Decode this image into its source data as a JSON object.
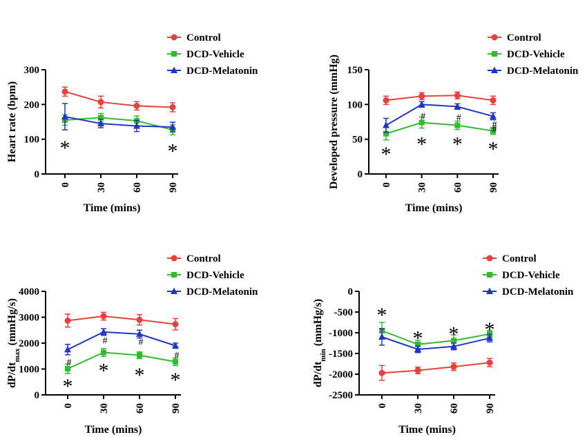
{
  "chart_data": [
    {
      "id": "hr",
      "type": "line",
      "title": "",
      "xlabel": "Time (mins)",
      "ylabel": "Heart rate (bpm)",
      "ylabel_sub": "",
      "ylabel_after": "",
      "x": [
        0,
        30,
        60,
        90
      ],
      "x_tick_labels": [
        "0",
        "30",
        "60",
        "90"
      ],
      "ylim": [
        0,
        300
      ],
      "y_ticks": [
        0,
        100,
        200,
        300
      ],
      "y_tick_labels": [
        "0",
        "100",
        "200",
        "300"
      ],
      "legend_position": "top-right",
      "series": [
        {
          "name": "Control",
          "color": "#e8403a",
          "marker": "circle",
          "values": [
            237,
            207,
            196,
            192
          ],
          "errors": [
            13,
            17,
            12,
            13
          ]
        },
        {
          "name": "DCD-Vehicle",
          "color": "#2ebd2b",
          "marker": "square",
          "values": [
            155,
            162,
            153,
            127
          ],
          "errors": [
            15,
            12,
            14,
            14
          ]
        },
        {
          "name": "DCD-Melatonin",
          "color": "#1f35c8",
          "marker": "triangle",
          "values": [
            165,
            145,
            138,
            135
          ],
          "errors": [
            38,
            12,
            16,
            14
          ]
        }
      ],
      "annotations": [
        {
          "text": "*",
          "x": 0,
          "y": 83,
          "kind": "star"
        },
        {
          "text": "*",
          "x": 90,
          "y": 75,
          "kind": "star"
        }
      ]
    },
    {
      "id": "dp",
      "type": "line",
      "title": "",
      "xlabel": "Time (mins)",
      "ylabel": "Developed pressure (mmHg)",
      "ylabel_sub": "",
      "ylabel_after": "",
      "x": [
        0,
        30,
        60,
        90
      ],
      "x_tick_labels": [
        "0",
        "30",
        "60",
        "90"
      ],
      "ylim": [
        0,
        150
      ],
      "y_ticks": [
        0,
        50,
        100,
        150
      ],
      "y_tick_labels": [
        "0",
        "50",
        "100",
        "150"
      ],
      "legend_position": "top-right",
      "series": [
        {
          "name": "Control",
          "color": "#e8403a",
          "marker": "circle",
          "values": [
            106,
            112,
            113,
            106
          ],
          "errors": [
            6,
            5,
            5,
            6
          ]
        },
        {
          "name": "DCD-Vehicle",
          "color": "#2ebd2b",
          "marker": "square",
          "values": [
            58,
            74,
            70,
            62
          ],
          "errors": [
            9,
            8,
            6,
            5
          ]
        },
        {
          "name": "DCD-Melatonin",
          "color": "#1f35c8",
          "marker": "triangle",
          "values": [
            70,
            100,
            97,
            83
          ],
          "errors": [
            10,
            4,
            4,
            5
          ]
        }
      ],
      "annotations": [
        {
          "text": "*",
          "x": 0,
          "y": 33,
          "kind": "star"
        },
        {
          "text": "*",
          "x": 30,
          "y": 47,
          "kind": "star"
        },
        {
          "text": "*",
          "x": 60,
          "y": 47,
          "kind": "star"
        },
        {
          "text": "*",
          "x": 90,
          "y": 40,
          "kind": "star"
        },
        {
          "text": "#",
          "x": 30,
          "y": 84,
          "kind": "hash"
        },
        {
          "text": "#",
          "x": 60,
          "y": 82,
          "kind": "hash"
        },
        {
          "text": "#",
          "x": 90,
          "y": 72,
          "kind": "hash"
        },
        {
          "text": "#",
          "x": 90,
          "y": 65,
          "kind": "hash"
        }
      ]
    },
    {
      "id": "dpmax",
      "type": "line",
      "title": "",
      "xlabel": "Time (mins)",
      "ylabel": "dP/dt",
      "ylabel_sub": "max",
      "ylabel_after": " (mmHg/s)",
      "x": [
        0,
        30,
        60,
        90
      ],
      "x_tick_labels": [
        "0",
        "30",
        "60",
        "90"
      ],
      "ylim": [
        0,
        4000
      ],
      "y_ticks": [
        0,
        1000,
        2000,
        3000,
        4000
      ],
      "y_tick_labels": [
        "0",
        "1000",
        "2000",
        "3000",
        "4000"
      ],
      "legend_position": "top-right",
      "series": [
        {
          "name": "Control",
          "color": "#e8403a",
          "marker": "circle",
          "values": [
            2870,
            3040,
            2900,
            2730
          ],
          "errors": [
            250,
            150,
            200,
            220
          ]
        },
        {
          "name": "DCD-Vehicle",
          "color": "#2ebd2b",
          "marker": "square",
          "values": [
            1010,
            1640,
            1530,
            1280
          ],
          "errors": [
            180,
            150,
            130,
            150
          ]
        },
        {
          "name": "DCD-Melatonin",
          "color": "#1f35c8",
          "marker": "triangle",
          "values": [
            1750,
            2430,
            2350,
            1900
          ],
          "errors": [
            200,
            130,
            150,
            100
          ]
        }
      ],
      "annotations": [
        {
          "text": "*",
          "x": 0,
          "y": 460,
          "kind": "star"
        },
        {
          "text": "*",
          "x": 30,
          "y": 1050,
          "kind": "star"
        },
        {
          "text": "*",
          "x": 60,
          "y": 880,
          "kind": "star"
        },
        {
          "text": "*",
          "x": 90,
          "y": 700,
          "kind": "star"
        },
        {
          "text": "#",
          "x": 0,
          "y": 1280,
          "kind": "hash"
        },
        {
          "text": "#",
          "x": 30,
          "y": 2120,
          "kind": "hash"
        },
        {
          "text": "#",
          "x": 60,
          "y": 2070,
          "kind": "hash"
        },
        {
          "text": "#",
          "x": 90,
          "y": 1550,
          "kind": "hash"
        }
      ]
    },
    {
      "id": "dpmin",
      "type": "line",
      "title": "",
      "xlabel": "Time (mins)",
      "ylabel": "dP/dt",
      "ylabel_sub": "min",
      "ylabel_after": " (mmHg/s)",
      "x": [
        0,
        30,
        60,
        90
      ],
      "x_tick_labels": [
        "0",
        "30",
        "60",
        "90"
      ],
      "ylim": [
        -2500,
        0
      ],
      "y_ticks": [
        0,
        -500,
        -1000,
        -1500,
        -2000,
        -2500
      ],
      "y_tick_labels": [
        "0",
        "-500",
        "-1000",
        "-1500",
        "-2000",
        "-2500"
      ],
      "legend_position": "top-right",
      "series": [
        {
          "name": "Control",
          "color": "#e8403a",
          "marker": "circle",
          "values": [
            -1970,
            -1910,
            -1820,
            -1720
          ],
          "errors": [
            180,
            80,
            90,
            100
          ]
        },
        {
          "name": "DCD-Vehicle",
          "color": "#2ebd2b",
          "marker": "square",
          "values": [
            -950,
            -1280,
            -1190,
            -1030
          ],
          "errors": [
            200,
            100,
            140,
            80
          ]
        },
        {
          "name": "DCD-Melatonin",
          "color": "#1f35c8",
          "marker": "triangle",
          "values": [
            -1100,
            -1400,
            -1330,
            -1130
          ],
          "errors": [
            200,
            80,
            80,
            90
          ]
        }
      ],
      "annotations": [
        {
          "text": "*",
          "x": 0,
          "y": -500,
          "kind": "star"
        },
        {
          "text": "*",
          "x": 30,
          "y": -1060,
          "kind": "star"
        },
        {
          "text": "*",
          "x": 60,
          "y": -960,
          "kind": "star"
        },
        {
          "text": "*",
          "x": 90,
          "y": -850,
          "kind": "star"
        }
      ]
    }
  ]
}
